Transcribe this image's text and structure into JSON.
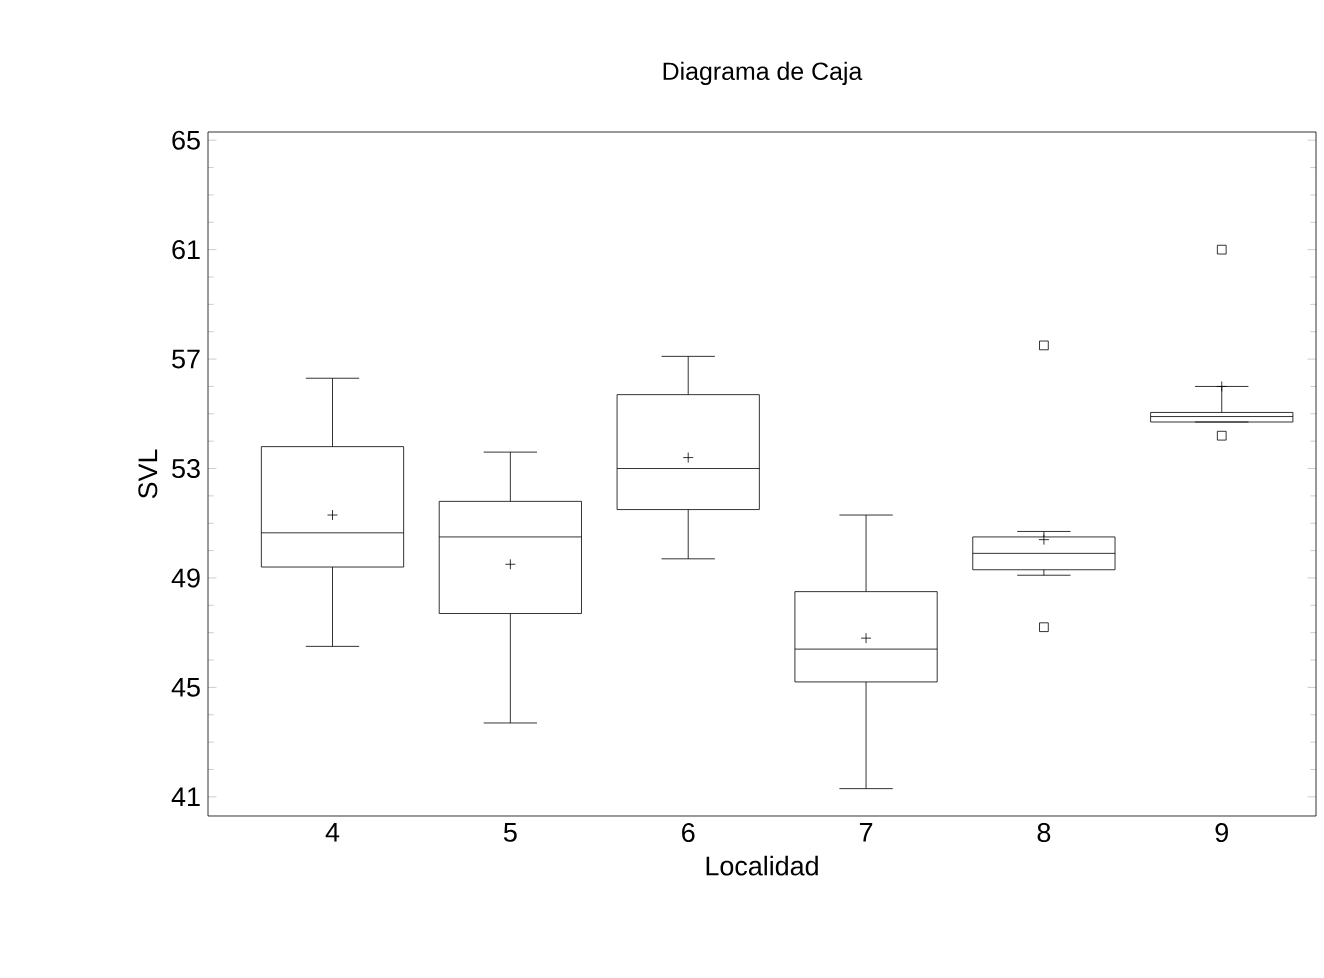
{
  "chart_data": {
    "type": "box",
    "title": "Diagrama de Caja",
    "xlabel": "Localidad",
    "ylabel": "SVL",
    "categories": [
      "4",
      "5",
      "6",
      "7",
      "8",
      "9"
    ],
    "boxes": [
      {
        "low": 46.5,
        "q1": 49.4,
        "median": 50.65,
        "q3": 53.8,
        "high": 56.3,
        "mean": 51.3
      },
      {
        "low": 43.7,
        "q1": 47.7,
        "median": 50.5,
        "q3": 51.8,
        "high": 53.6,
        "mean": 49.5
      },
      {
        "low": 49.7,
        "q1": 51.5,
        "median": 53.0,
        "q3": 55.7,
        "high": 57.1,
        "mean": 53.4
      },
      {
        "low": 41.3,
        "q1": 45.2,
        "median": 46.4,
        "q3": 48.5,
        "high": 51.3,
        "mean": 46.8
      },
      {
        "low": 49.1,
        "q1": 49.3,
        "median": 49.9,
        "q3": 50.5,
        "high": 50.7,
        "mean": 50.4,
        "outliers": [
          57.5,
          47.2
        ]
      },
      {
        "low": 54.7,
        "q1": 54.7,
        "median": 54.9,
        "q3": 55.05,
        "high": 56.0,
        "mean": 56.0,
        "outliers": [
          61.0,
          54.2
        ]
      }
    ],
    "color": "#000000",
    "ylim": [
      40.3,
      65.3
    ],
    "yticks": [
      41,
      45,
      49,
      53,
      57,
      61,
      65
    ],
    "grid": false,
    "marker": "square"
  }
}
